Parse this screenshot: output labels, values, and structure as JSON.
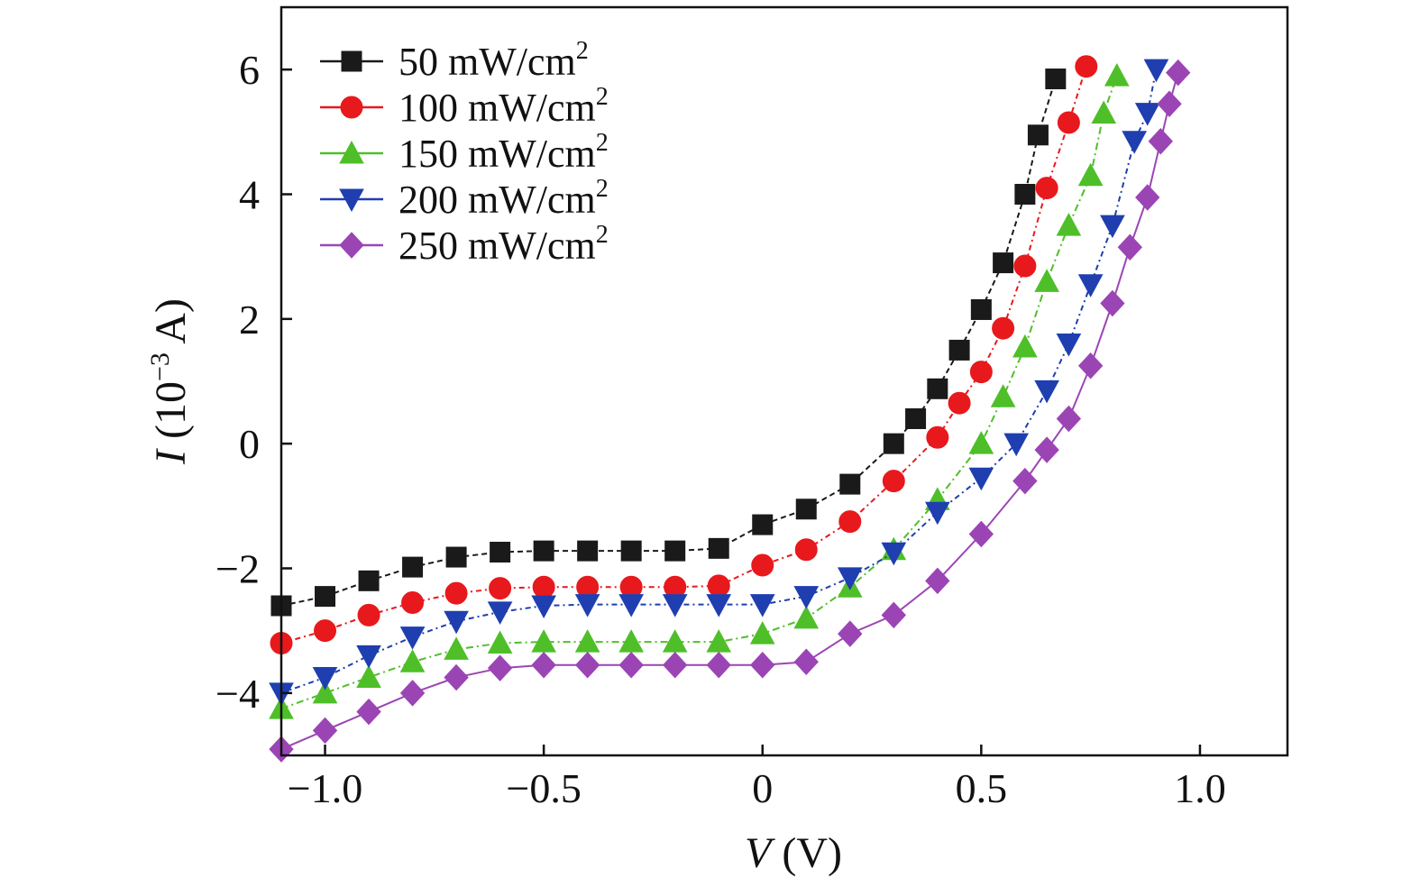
{
  "chart_data": {
    "type": "line",
    "xlabel": {
      "var": "V",
      "unit": " (V)"
    },
    "ylabel": {
      "var": "I",
      "unit_pre": " (10",
      "unit_sup": "−3",
      "unit_post": " A)"
    },
    "xlim": [
      -1.1,
      1.2
    ],
    "ylim": [
      -5.0,
      7.0
    ],
    "xticks": [
      {
        "value": -1.0,
        "label": "−1.0"
      },
      {
        "value": -0.5,
        "label": "−0.5"
      },
      {
        "value": 0,
        "label": "0"
      },
      {
        "value": 0.5,
        "label": "0.5"
      },
      {
        "value": 1.0,
        "label": "1.0"
      }
    ],
    "yticks": [
      {
        "value": -4,
        "label": "−4"
      },
      {
        "value": -2,
        "label": "−2"
      },
      {
        "value": 0,
        "label": "0"
      },
      {
        "value": 2,
        "label": "2"
      },
      {
        "value": 4,
        "label": "4"
      },
      {
        "value": 6,
        "label": "6"
      }
    ],
    "legend_position": "top-left",
    "series": [
      {
        "name": "50 mW/cm",
        "name_sup": "2",
        "color": "#1a1a1a",
        "marker": "square",
        "dash": "6,4",
        "points": [
          [
            -1.1,
            -2.6
          ],
          [
            -1.0,
            -2.45
          ],
          [
            -0.9,
            -2.2
          ],
          [
            -0.8,
            -1.98
          ],
          [
            -0.7,
            -1.82
          ],
          [
            -0.6,
            -1.74
          ],
          [
            -0.5,
            -1.72
          ],
          [
            -0.4,
            -1.72
          ],
          [
            -0.3,
            -1.72
          ],
          [
            -0.2,
            -1.72
          ],
          [
            -0.1,
            -1.68
          ],
          [
            0.0,
            -1.3
          ],
          [
            0.1,
            -1.05
          ],
          [
            0.2,
            -0.65
          ],
          [
            0.3,
            0.0
          ],
          [
            0.35,
            0.4
          ],
          [
            0.4,
            0.88
          ],
          [
            0.45,
            1.5
          ],
          [
            0.5,
            2.15
          ],
          [
            0.55,
            2.9
          ],
          [
            0.6,
            4.0
          ],
          [
            0.63,
            4.95
          ],
          [
            0.67,
            5.85
          ]
        ]
      },
      {
        "name": "100 mW/cm",
        "name_sup": "2",
        "color": "#e8191c",
        "marker": "circle",
        "dash": "6,4,2,4",
        "points": [
          [
            -1.1,
            -3.2
          ],
          [
            -1.0,
            -3.0
          ],
          [
            -0.9,
            -2.75
          ],
          [
            -0.8,
            -2.55
          ],
          [
            -0.7,
            -2.4
          ],
          [
            -0.6,
            -2.32
          ],
          [
            -0.5,
            -2.3
          ],
          [
            -0.4,
            -2.3
          ],
          [
            -0.3,
            -2.3
          ],
          [
            -0.2,
            -2.3
          ],
          [
            -0.1,
            -2.28
          ],
          [
            0.0,
            -1.95
          ],
          [
            0.1,
            -1.7
          ],
          [
            0.2,
            -1.25
          ],
          [
            0.3,
            -0.6
          ],
          [
            0.4,
            0.1
          ],
          [
            0.45,
            0.65
          ],
          [
            0.5,
            1.15
          ],
          [
            0.55,
            1.85
          ],
          [
            0.6,
            2.85
          ],
          [
            0.65,
            4.1
          ],
          [
            0.7,
            5.15
          ],
          [
            0.74,
            6.05
          ]
        ]
      },
      {
        "name": "150 mW/cm",
        "name_sup": "2",
        "color": "#4fbf29",
        "marker": "triangle-up",
        "dash": "8,4,2,4",
        "points": [
          [
            -1.1,
            -4.25
          ],
          [
            -1.0,
            -4.0
          ],
          [
            -0.9,
            -3.75
          ],
          [
            -0.8,
            -3.5
          ],
          [
            -0.7,
            -3.3
          ],
          [
            -0.6,
            -3.2
          ],
          [
            -0.5,
            -3.18
          ],
          [
            -0.4,
            -3.18
          ],
          [
            -0.3,
            -3.18
          ],
          [
            -0.2,
            -3.18
          ],
          [
            -0.1,
            -3.18
          ],
          [
            0.0,
            -3.05
          ],
          [
            0.1,
            -2.8
          ],
          [
            0.2,
            -2.3
          ],
          [
            0.3,
            -1.7
          ],
          [
            0.4,
            -0.9
          ],
          [
            0.5,
            0.0
          ],
          [
            0.55,
            0.75
          ],
          [
            0.6,
            1.55
          ],
          [
            0.65,
            2.6
          ],
          [
            0.7,
            3.5
          ],
          [
            0.75,
            4.3
          ],
          [
            0.78,
            5.3
          ],
          [
            0.81,
            5.9
          ]
        ]
      },
      {
        "name": "200 mW/cm",
        "name_sup": "2",
        "color": "#1f3fb0",
        "marker": "triangle-down",
        "dash": "6,4,2,4",
        "points": [
          [
            -1.1,
            -4.0
          ],
          [
            -1.0,
            -3.75
          ],
          [
            -0.9,
            -3.4
          ],
          [
            -0.8,
            -3.1
          ],
          [
            -0.7,
            -2.85
          ],
          [
            -0.6,
            -2.7
          ],
          [
            -0.5,
            -2.6
          ],
          [
            -0.4,
            -2.58
          ],
          [
            -0.3,
            -2.58
          ],
          [
            -0.2,
            -2.58
          ],
          [
            -0.1,
            -2.58
          ],
          [
            0.0,
            -2.58
          ],
          [
            0.1,
            -2.45
          ],
          [
            0.2,
            -2.15
          ],
          [
            0.3,
            -1.75
          ],
          [
            0.4,
            -1.1
          ],
          [
            0.5,
            -0.55
          ],
          [
            0.58,
            0.0
          ],
          [
            0.65,
            0.85
          ],
          [
            0.7,
            1.6
          ],
          [
            0.75,
            2.55
          ],
          [
            0.8,
            3.5
          ],
          [
            0.85,
            4.85
          ],
          [
            0.88,
            5.3
          ],
          [
            0.9,
            6.0
          ]
        ]
      },
      {
        "name": "250 mW/cm",
        "name_sup": "2",
        "color": "#9b45b5",
        "marker": "diamond",
        "dash": "",
        "points": [
          [
            -1.1,
            -4.9
          ],
          [
            -1.0,
            -4.6
          ],
          [
            -0.9,
            -4.3
          ],
          [
            -0.8,
            -4.0
          ],
          [
            -0.7,
            -3.75
          ],
          [
            -0.6,
            -3.6
          ],
          [
            -0.5,
            -3.55
          ],
          [
            -0.4,
            -3.55
          ],
          [
            -0.3,
            -3.55
          ],
          [
            -0.2,
            -3.55
          ],
          [
            -0.1,
            -3.55
          ],
          [
            0.0,
            -3.55
          ],
          [
            0.1,
            -3.5
          ],
          [
            0.2,
            -3.05
          ],
          [
            0.3,
            -2.75
          ],
          [
            0.4,
            -2.2
          ],
          [
            0.5,
            -1.45
          ],
          [
            0.6,
            -0.6
          ],
          [
            0.65,
            -0.1
          ],
          [
            0.7,
            0.4
          ],
          [
            0.75,
            1.25
          ],
          [
            0.8,
            2.25
          ],
          [
            0.84,
            3.15
          ],
          [
            0.88,
            3.95
          ],
          [
            0.91,
            4.85
          ],
          [
            0.93,
            5.45
          ],
          [
            0.95,
            5.95
          ]
        ]
      }
    ]
  }
}
